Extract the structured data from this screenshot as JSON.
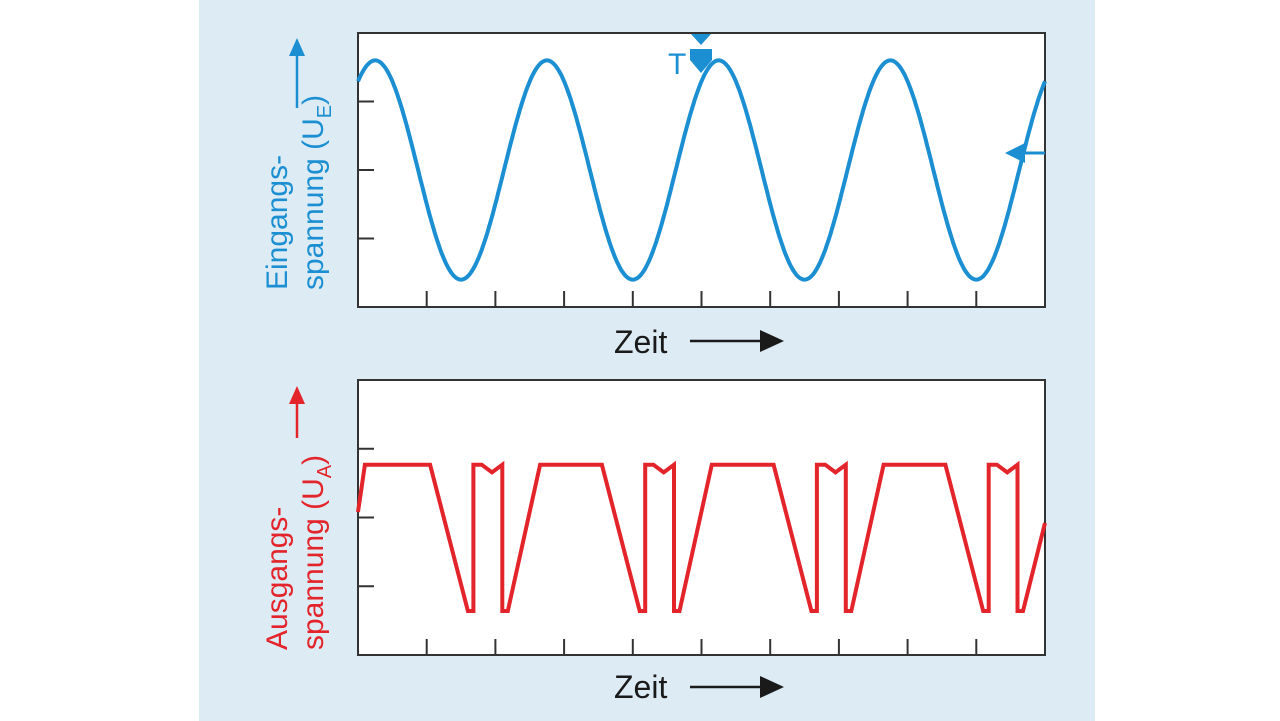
{
  "colors": {
    "input": "#1b8fd2",
    "output": "#e3242b",
    "axis": "#333333",
    "panel": "#dcebf4"
  },
  "chart_data": [
    {
      "type": "line",
      "id": "input",
      "ylabel_line1": "Eingangs-",
      "ylabel_line2": "spannung (U",
      "ylabel_sub": "E",
      "ylabel_close": ")",
      "xlabel": "Zeit",
      "marker_label": "T",
      "xlim": [
        0,
        10
      ],
      "ylim": [
        -1.25,
        1.25
      ],
      "series": [
        {
          "function": "sine",
          "amplitude": 1,
          "period": 2.5,
          "phase_start": 0.15
        }
      ]
    },
    {
      "type": "line",
      "id": "output",
      "ylabel_line1": "Ausgangs-",
      "ylabel_line2": "spannung (U",
      "ylabel_sub": "A",
      "ylabel_close": ")",
      "xlabel": "Zeit",
      "xlim": [
        0,
        10
      ],
      "ylim": [
        -1.25,
        1.25
      ],
      "series": [
        {
          "points": [
            [
              0,
              0.05
            ],
            [
              0.1,
              0.48
            ],
            [
              1.05,
              0.48
            ],
            [
              1.6,
              -0.85
            ],
            [
              1.68,
              -0.85
            ],
            [
              1.68,
              0.48
            ],
            [
              1.8,
              0.48
            ],
            [
              1.95,
              0.41
            ],
            [
              2.1,
              0.48
            ],
            [
              2.1,
              -0.85
            ],
            [
              2.18,
              -0.85
            ],
            [
              2.65,
              0.48
            ],
            [
              3.55,
              0.48
            ],
            [
              4.1,
              -0.85
            ],
            [
              4.18,
              -0.85
            ],
            [
              4.18,
              0.48
            ],
            [
              4.3,
              0.48
            ],
            [
              4.45,
              0.41
            ],
            [
              4.6,
              0.48
            ],
            [
              4.6,
              -0.85
            ],
            [
              4.68,
              -0.85
            ],
            [
              5.15,
              0.48
            ],
            [
              6.05,
              0.48
            ],
            [
              6.6,
              -0.85
            ],
            [
              6.68,
              -0.85
            ],
            [
              6.68,
              0.48
            ],
            [
              6.8,
              0.48
            ],
            [
              6.95,
              0.41
            ],
            [
              7.1,
              0.48
            ],
            [
              7.1,
              -0.85
            ],
            [
              7.18,
              -0.85
            ],
            [
              7.65,
              0.48
            ],
            [
              8.55,
              0.48
            ],
            [
              9.1,
              -0.85
            ],
            [
              9.18,
              -0.85
            ],
            [
              9.18,
              0.48
            ],
            [
              9.3,
              0.48
            ],
            [
              9.45,
              0.41
            ],
            [
              9.6,
              0.48
            ],
            [
              9.6,
              -0.85
            ],
            [
              9.68,
              -0.85
            ],
            [
              10,
              -0.05
            ]
          ]
        }
      ]
    }
  ]
}
